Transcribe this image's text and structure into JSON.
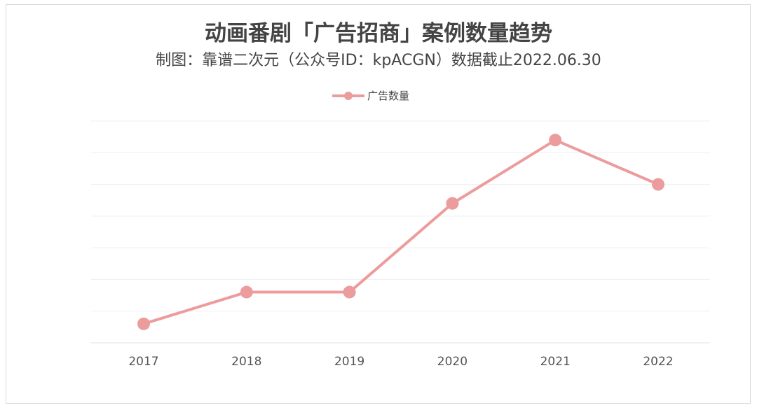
{
  "chart_data": {
    "type": "line",
    "title": "动画番剧「广告招商」案例数量趋势",
    "subtitle": "制图：靠谱二次元（公众号ID：kpACGN）数据截止2022.06.30",
    "categories": [
      "2017",
      "2018",
      "2019",
      "2020",
      "2021",
      "2022"
    ],
    "series": [
      {
        "name": "广告数量",
        "values": [
          3,
          8,
          8,
          22,
          32,
          25
        ],
        "color": "#ec9c9c"
      }
    ],
    "ylim": [
      0,
      35
    ],
    "y_tick_labels_shown": false,
    "grid": true,
    "legend": "top-center",
    "xlabel": "",
    "ylabel": ""
  }
}
